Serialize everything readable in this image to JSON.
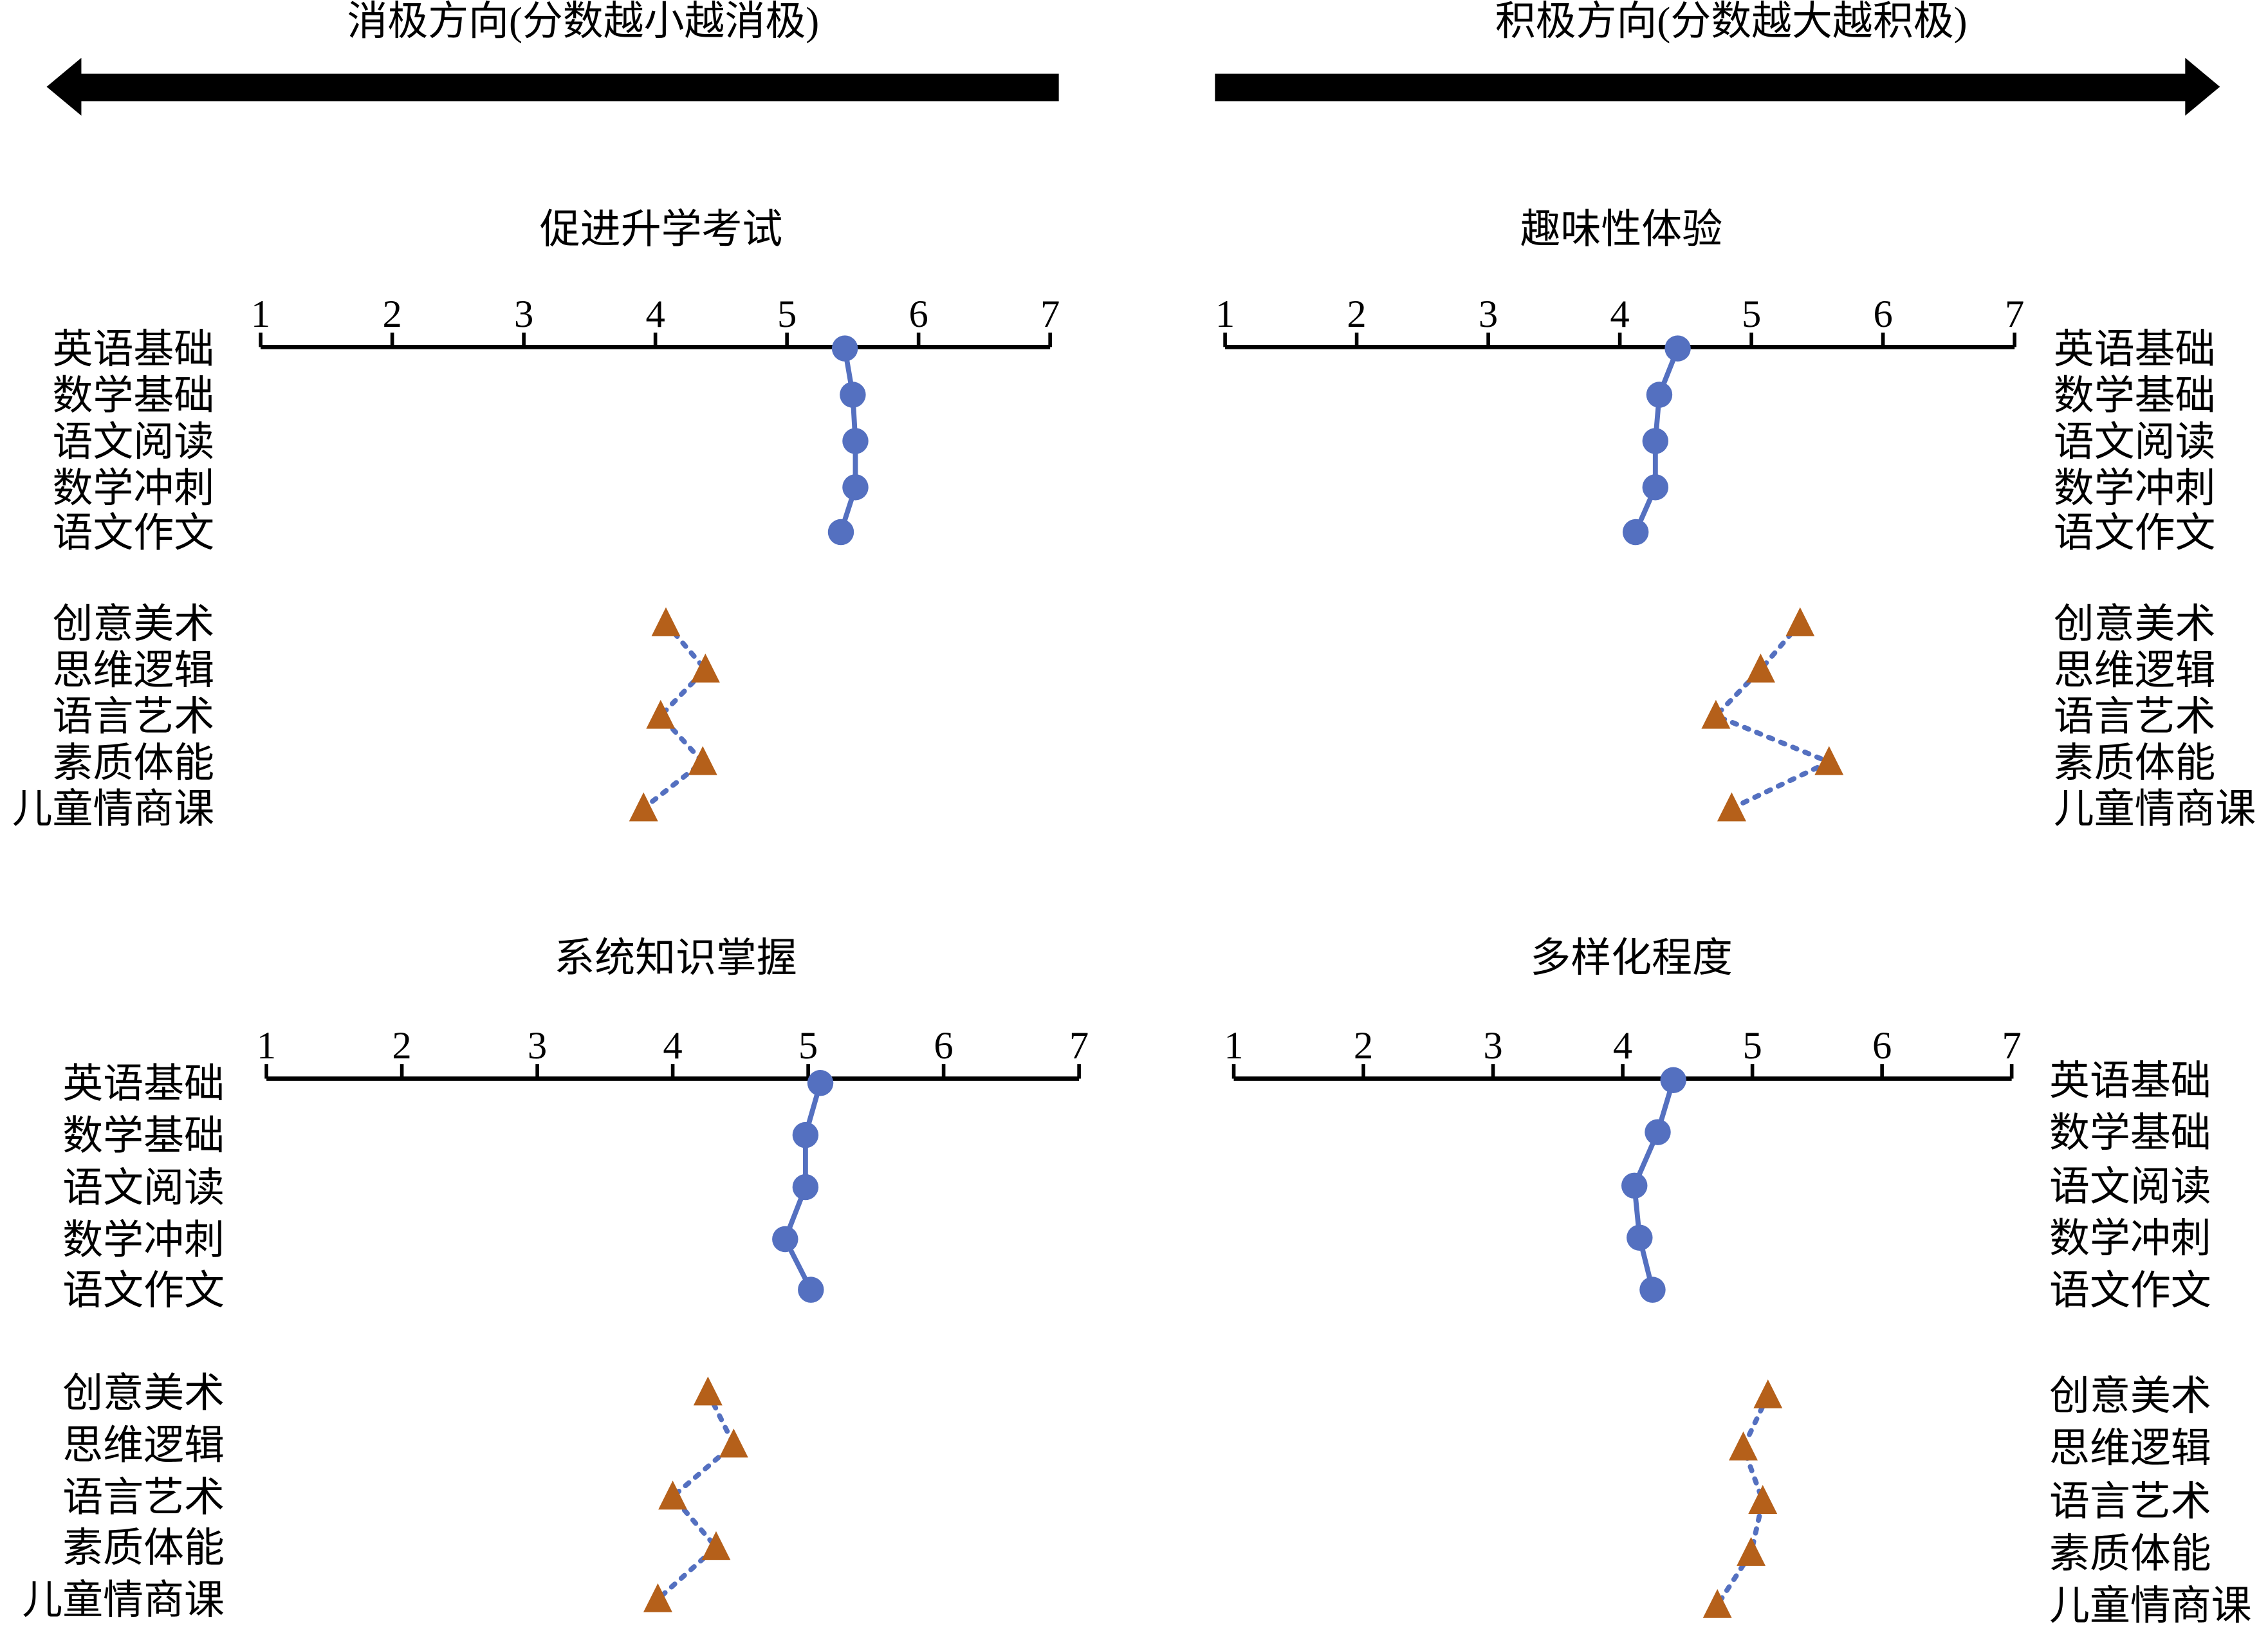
{
  "header": {
    "negative_label": "消极方向(分数越小越消极)",
    "positive_label": "积极方向(分数越大越积极)"
  },
  "colors": {
    "series_a": "#5470c0",
    "series_b": "#b5601a",
    "axis": "#000000"
  },
  "chart_data": [
    {
      "type": "scatter",
      "title": "促进升学考试",
      "xlim": [
        1,
        7
      ],
      "ticks": [
        "1",
        "2",
        "3",
        "4",
        "5",
        "6",
        "7"
      ],
      "label_side": "left",
      "series": [
        {
          "marker": "circle",
          "line": "solid",
          "categories": [
            "英语基础",
            "数学基础",
            "语文阅读",
            "数学冲刺",
            "语文作文"
          ],
          "values": [
            5.44,
            5.5,
            5.52,
            5.52,
            5.41
          ]
        },
        {
          "marker": "triangle",
          "line": "dotted",
          "categories": [
            "创意美术",
            "思维逻辑",
            "语言艺术",
            "素质体能",
            "儿童情商课"
          ],
          "values": [
            4.08,
            4.38,
            4.04,
            4.36,
            3.91
          ]
        }
      ]
    },
    {
      "type": "scatter",
      "title": "趣味性体验",
      "xlim": [
        1,
        7
      ],
      "ticks": [
        "1",
        "2",
        "3",
        "4",
        "5",
        "6",
        "7"
      ],
      "label_side": "right",
      "series": [
        {
          "marker": "circle",
          "line": "solid",
          "categories": [
            "英语基础",
            "数学基础",
            "语文阅读",
            "数学冲刺",
            "语文作文"
          ],
          "values": [
            4.44,
            4.3,
            4.27,
            4.27,
            4.12
          ]
        },
        {
          "marker": "triangle",
          "line": "dotted",
          "categories": [
            "创意美术",
            "思维逻辑",
            "语言艺术",
            "素质体能",
            "儿童情商课"
          ],
          "values": [
            5.37,
            5.07,
            4.73,
            5.59,
            4.85
          ]
        }
      ]
    },
    {
      "type": "scatter",
      "title": "系统知识掌握",
      "xlim": [
        1,
        7
      ],
      "ticks": [
        "1",
        "2",
        "3",
        "4",
        "5",
        "6",
        "7"
      ],
      "label_side": "left",
      "series": [
        {
          "marker": "circle",
          "line": "solid",
          "categories": [
            "英语基础",
            "数学基础",
            "语文阅读",
            "数学冲刺",
            "语文作文"
          ],
          "values": [
            5.09,
            4.98,
            4.98,
            4.83,
            5.02
          ]
        },
        {
          "marker": "triangle",
          "line": "dotted",
          "categories": [
            "创意美术",
            "思维逻辑",
            "语言艺术",
            "素质体能",
            "儿童情商课"
          ],
          "values": [
            4.26,
            4.45,
            4.0,
            4.32,
            3.89
          ]
        }
      ]
    },
    {
      "type": "scatter",
      "title": "多样化程度",
      "xlim": [
        1,
        7
      ],
      "ticks": [
        "1",
        "2",
        "3",
        "4",
        "5",
        "6",
        "7"
      ],
      "label_side": "right",
      "series": [
        {
          "marker": "circle",
          "line": "solid",
          "categories": [
            "英语基础",
            "数学基础",
            "语文阅读",
            "数学冲刺",
            "语文作文"
          ],
          "values": [
            4.39,
            4.27,
            4.09,
            4.13,
            4.23
          ]
        },
        {
          "marker": "triangle",
          "line": "dotted",
          "categories": [
            "创意美术",
            "思维逻辑",
            "语言艺术",
            "素质体能",
            "儿童情商课"
          ],
          "values": [
            5.12,
            4.93,
            5.08,
            4.99,
            4.73
          ]
        }
      ]
    }
  ]
}
